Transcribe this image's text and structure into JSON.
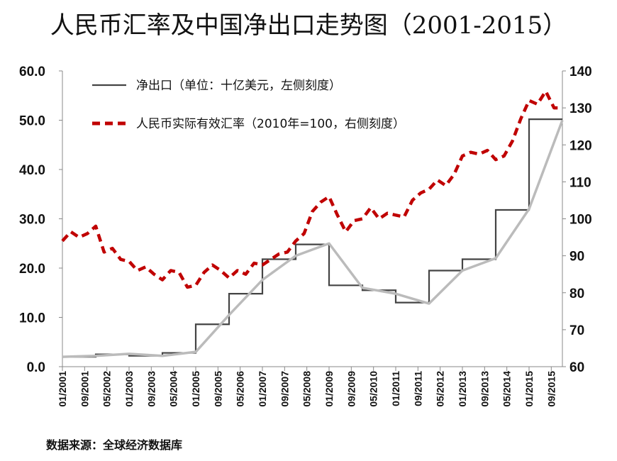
{
  "title": "人民币汇率及中国净出口走势图（2001-2015）",
  "source": "数据来源：全球经济数据库",
  "chart_data": {
    "type": "line",
    "legend": [
      {
        "label": "净出口（单位：十亿美元，左侧刻度）",
        "style": "solid",
        "color": "#444444"
      },
      {
        "label": "人民币实际有效汇率（2010年=100，右侧刻度）",
        "style": "dashed",
        "color": "#c00000"
      }
    ],
    "left_axis": {
      "ylim": [
        0,
        60
      ],
      "ticks": [
        "0.0",
        "10.0",
        "20.0",
        "30.0",
        "40.0",
        "50.0",
        "60.0"
      ]
    },
    "right_axis": {
      "ylim": [
        60,
        140
      ],
      "ticks": [
        "60",
        "70",
        "80",
        "90",
        "100",
        "110",
        "120",
        "130",
        "140"
      ]
    },
    "x_ticks": [
      "01/2001",
      "09/2001",
      "05/2002",
      "01/2003",
      "09/2003",
      "05/2004",
      "01/2005",
      "09/2005",
      "05/2006",
      "01/2007",
      "09/2007",
      "05/2008",
      "01/2009",
      "09/2009",
      "05/2010",
      "01/2011",
      "09/2011",
      "05/2012",
      "01/2013",
      "09/2013",
      "05/2014",
      "01/2015",
      "09/2015"
    ],
    "series": [
      {
        "name": "净出口（单位：十亿美元，左侧刻度）",
        "axis": "left",
        "style": "step",
        "color": "#444444",
        "x": [
          "2001-01",
          "2002-01",
          "2003-01",
          "2004-01",
          "2005-01",
          "2006-01",
          "2007-01",
          "2008-01",
          "2009-01",
          "2010-01",
          "2011-01",
          "2012-01",
          "2013-01",
          "2014-01",
          "2015-01",
          "2016-01"
        ],
        "values": [
          2.0,
          2.5,
          2.2,
          2.8,
          8.6,
          14.8,
          21.8,
          24.8,
          16.5,
          15.5,
          13.0,
          19.5,
          21.8,
          31.8,
          50.2,
          50.2
        ]
      },
      {
        "name": "",
        "axis": "left",
        "style": "trend",
        "color": "#bbbbbb",
        "x": [
          "2001-01",
          "2002-01",
          "2003-01",
          "2004-01",
          "2005-01",
          "2006-01",
          "2007-01",
          "2008-01",
          "2009-01",
          "2010-01",
          "2011-01",
          "2012-01",
          "2013-01",
          "2014-01",
          "2015-01",
          "2016-01"
        ],
        "values": [
          2.0,
          2.2,
          2.6,
          2.2,
          3.0,
          10.5,
          17.6,
          22.5,
          25.0,
          16.0,
          14.8,
          12.8,
          19.5,
          22.0,
          32.0,
          50.0
        ]
      },
      {
        "name": "人民币实际有效汇率（2010年=100，右侧刻度）",
        "axis": "right",
        "style": "dashed",
        "color": "#c00000",
        "x": [
          "2001-01",
          "2001-04",
          "2001-07",
          "2001-10",
          "2002-01",
          "2002-04",
          "2002-07",
          "2002-10",
          "2003-01",
          "2003-04",
          "2003-07",
          "2003-10",
          "2004-01",
          "2004-04",
          "2004-07",
          "2004-10",
          "2005-01",
          "2005-04",
          "2005-07",
          "2005-10",
          "2006-01",
          "2006-04",
          "2006-07",
          "2006-10",
          "2007-01",
          "2007-04",
          "2007-07",
          "2007-10",
          "2008-01",
          "2008-04",
          "2008-07",
          "2008-10",
          "2009-01",
          "2009-04",
          "2009-07",
          "2009-10",
          "2010-01",
          "2010-04",
          "2010-07",
          "2010-10",
          "2011-01",
          "2011-04",
          "2011-07",
          "2011-10",
          "2012-01",
          "2012-04",
          "2012-07",
          "2012-10",
          "2013-01",
          "2013-04",
          "2013-07",
          "2013-10",
          "2014-01",
          "2014-04",
          "2014-07",
          "2014-10",
          "2015-01",
          "2015-04",
          "2015-07",
          "2015-10",
          "2016-01"
        ],
        "values": [
          94,
          96.5,
          95,
          96,
          98,
          91,
          92,
          89,
          88.5,
          86,
          87,
          85,
          83.5,
          86,
          85.5,
          81.5,
          82,
          85.5,
          87.5,
          86,
          84,
          86,
          85,
          88,
          87.5,
          89,
          90.5,
          91,
          94,
          96,
          102,
          104.5,
          106,
          101,
          96.5,
          99.5,
          100,
          103,
          100,
          101.5,
          101,
          100.5,
          105,
          107,
          108,
          110.5,
          109,
          112,
          117,
          118,
          117.5,
          118.5,
          116,
          117,
          121,
          127,
          132,
          131,
          134.5,
          130,
          130
        ]
      }
    ],
    "grid": false
  }
}
